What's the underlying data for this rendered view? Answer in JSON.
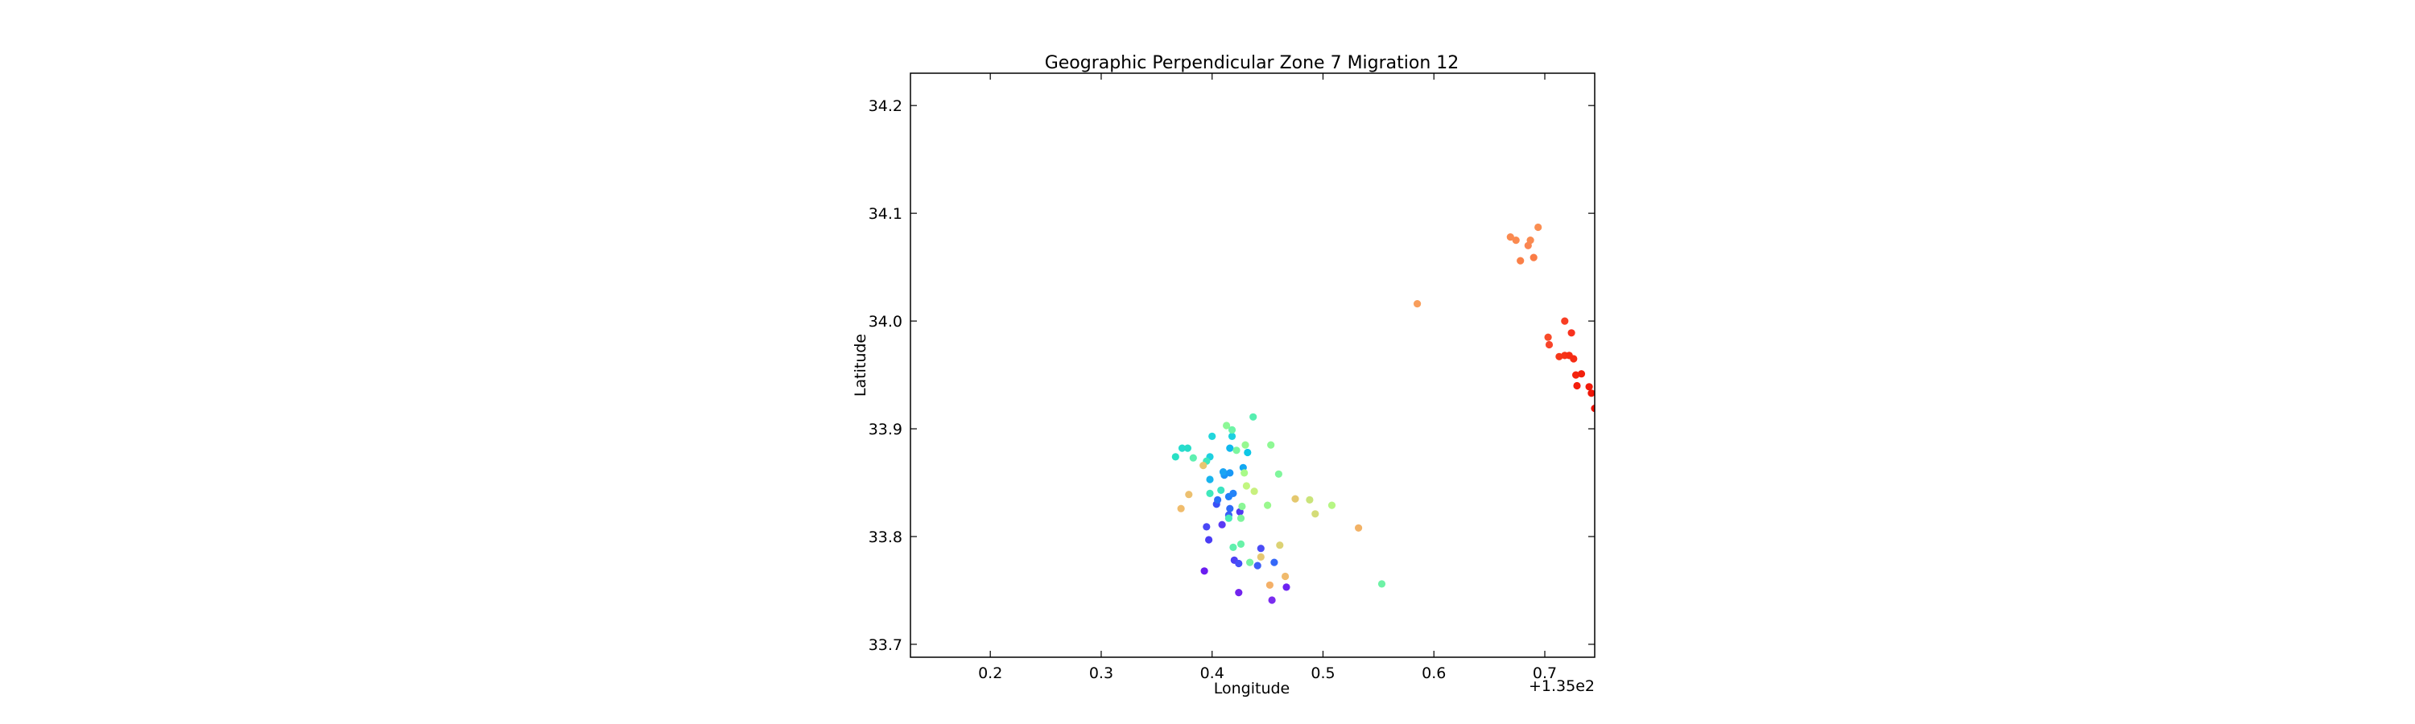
{
  "chart_data": {
    "type": "scatter",
    "title": "Geographic Perpendicular Zone 7 Migration 12",
    "xlabel": "Longitude",
    "ylabel": "Latitude",
    "x_offset_label": "+1.35e2",
    "xlim": [
      135.128,
      135.745
    ],
    "ylim": [
      33.688,
      34.23
    ],
    "x_ticks": [
      {
        "value": 135.2,
        "label": "0.2"
      },
      {
        "value": 135.3,
        "label": "0.3"
      },
      {
        "value": 135.4,
        "label": "0.4"
      },
      {
        "value": 135.5,
        "label": "0.5"
      },
      {
        "value": 135.6,
        "label": "0.6"
      },
      {
        "value": 135.7,
        "label": "0.7"
      }
    ],
    "y_ticks": [
      {
        "value": 33.7,
        "label": "33.7"
      },
      {
        "value": 33.8,
        "label": "33.8"
      },
      {
        "value": 33.9,
        "label": "33.9"
      },
      {
        "value": 34.0,
        "label": "34.0"
      },
      {
        "value": 34.1,
        "label": "34.1"
      },
      {
        "value": 34.2,
        "label": "34.2"
      }
    ],
    "grid": false,
    "legend": false,
    "points": [
      {
        "x": 135.393,
        "y": 33.768,
        "color": "#6a1cf0"
      },
      {
        "x": 135.424,
        "y": 33.748,
        "color": "#7224ee"
      },
      {
        "x": 135.454,
        "y": 33.741,
        "color": "#7a2cef"
      },
      {
        "x": 135.467,
        "y": 33.753,
        "color": "#6c22f2"
      },
      {
        "x": 135.397,
        "y": 33.797,
        "color": "#4a3cf5"
      },
      {
        "x": 135.395,
        "y": 33.809,
        "color": "#4a48f6"
      },
      {
        "x": 135.409,
        "y": 33.811,
        "color": "#5a3af4"
      },
      {
        "x": 135.42,
        "y": 33.778,
        "color": "#4e40f5"
      },
      {
        "x": 135.424,
        "y": 33.775,
        "color": "#4650f7"
      },
      {
        "x": 135.441,
        "y": 33.773,
        "color": "#3e60f7"
      },
      {
        "x": 135.444,
        "y": 33.789,
        "color": "#4a4cf6"
      },
      {
        "x": 135.456,
        "y": 33.776,
        "color": "#3468f8"
      },
      {
        "x": 135.404,
        "y": 33.83,
        "color": "#3a50f6"
      },
      {
        "x": 135.416,
        "y": 33.826,
        "color": "#2e6af8"
      },
      {
        "x": 135.425,
        "y": 33.823,
        "color": "#5038f3"
      },
      {
        "x": 135.415,
        "y": 33.82,
        "color": "#3a5ef7"
      },
      {
        "x": 135.405,
        "y": 33.834,
        "color": "#2a70f8"
      },
      {
        "x": 135.415,
        "y": 33.837,
        "color": "#2080f8"
      },
      {
        "x": 135.419,
        "y": 33.84,
        "color": "#2484f8"
      },
      {
        "x": 135.411,
        "y": 33.857,
        "color": "#1c94f6"
      },
      {
        "x": 135.41,
        "y": 33.86,
        "color": "#1aa4f4"
      },
      {
        "x": 135.416,
        "y": 33.859,
        "color": "#1898f6"
      },
      {
        "x": 135.428,
        "y": 33.864,
        "color": "#12a8f2"
      },
      {
        "x": 135.398,
        "y": 33.853,
        "color": "#18b4ee"
      },
      {
        "x": 135.416,
        "y": 33.882,
        "color": "#10b8ee"
      },
      {
        "x": 135.432,
        "y": 33.878,
        "color": "#0ec8e6"
      },
      {
        "x": 135.398,
        "y": 33.874,
        "color": "#1ed0e0"
      },
      {
        "x": 135.4,
        "y": 33.893,
        "color": "#22d6dc"
      },
      {
        "x": 135.418,
        "y": 33.893,
        "color": "#1cd0e0"
      },
      {
        "x": 135.373,
        "y": 33.882,
        "color": "#26dccf"
      },
      {
        "x": 135.378,
        "y": 33.882,
        "color": "#28dcc8"
      },
      {
        "x": 135.367,
        "y": 33.874,
        "color": "#28e0c4"
      },
      {
        "x": 135.383,
        "y": 33.873,
        "color": "#5ef0b0"
      },
      {
        "x": 135.395,
        "y": 33.87,
        "color": "#3ee8bc"
      },
      {
        "x": 135.398,
        "y": 33.84,
        "color": "#40e8bc"
      },
      {
        "x": 135.408,
        "y": 33.843,
        "color": "#3ce4c0"
      },
      {
        "x": 135.415,
        "y": 33.817,
        "color": "#48eab8"
      },
      {
        "x": 135.437,
        "y": 33.911,
        "color": "#56eeb0"
      },
      {
        "x": 135.418,
        "y": 33.899,
        "color": "#6ef4a6"
      },
      {
        "x": 135.413,
        "y": 33.903,
        "color": "#8cf896"
      },
      {
        "x": 135.422,
        "y": 33.88,
        "color": "#7cf69e"
      },
      {
        "x": 135.43,
        "y": 33.885,
        "color": "#96f890"
      },
      {
        "x": 135.453,
        "y": 33.885,
        "color": "#8ef894"
      },
      {
        "x": 135.46,
        "y": 33.858,
        "color": "#80f69c"
      },
      {
        "x": 135.429,
        "y": 33.859,
        "color": "#a8fa88"
      },
      {
        "x": 135.431,
        "y": 33.847,
        "color": "#c2f680"
      },
      {
        "x": 135.438,
        "y": 33.842,
        "color": "#c8f07e"
      },
      {
        "x": 135.45,
        "y": 33.829,
        "color": "#9af88e"
      },
      {
        "x": 135.427,
        "y": 33.828,
        "color": "#8af696"
      },
      {
        "x": 135.419,
        "y": 33.79,
        "color": "#60f0ae"
      },
      {
        "x": 135.426,
        "y": 33.793,
        "color": "#68f2a8"
      },
      {
        "x": 135.434,
        "y": 33.776,
        "color": "#78f4a0"
      },
      {
        "x": 135.553,
        "y": 33.756,
        "color": "#6ef2a6"
      },
      {
        "x": 135.426,
        "y": 33.817,
        "color": "#7ef49c"
      },
      {
        "x": 135.508,
        "y": 33.829,
        "color": "#b6f684"
      },
      {
        "x": 135.488,
        "y": 33.834,
        "color": "#cae47a"
      },
      {
        "x": 135.493,
        "y": 33.821,
        "color": "#d4dc78"
      },
      {
        "x": 135.475,
        "y": 33.835,
        "color": "#e4c86e"
      },
      {
        "x": 135.532,
        "y": 33.808,
        "color": "#f2b266"
      },
      {
        "x": 135.379,
        "y": 33.839,
        "color": "#ecc070"
      },
      {
        "x": 135.372,
        "y": 33.826,
        "color": "#f0bc6c"
      },
      {
        "x": 135.392,
        "y": 33.866,
        "color": "#e8c670"
      },
      {
        "x": 135.461,
        "y": 33.792,
        "color": "#dcd274"
      },
      {
        "x": 135.444,
        "y": 33.781,
        "color": "#e6c872"
      },
      {
        "x": 135.466,
        "y": 33.763,
        "color": "#f0ba6c"
      },
      {
        "x": 135.452,
        "y": 33.755,
        "color": "#f4b068"
      },
      {
        "x": 135.585,
        "y": 34.016,
        "color": "#f89e5c"
      },
      {
        "x": 135.669,
        "y": 34.078,
        "color": "#fa8a50"
      },
      {
        "x": 135.674,
        "y": 34.075,
        "color": "#fa8a50"
      },
      {
        "x": 135.685,
        "y": 34.07,
        "color": "#fa8652"
      },
      {
        "x": 135.687,
        "y": 34.075,
        "color": "#fa8a50"
      },
      {
        "x": 135.694,
        "y": 34.087,
        "color": "#fa8e52"
      },
      {
        "x": 135.678,
        "y": 34.056,
        "color": "#fa8048"
      },
      {
        "x": 135.69,
        "y": 34.059,
        "color": "#fa7c46"
      },
      {
        "x": 135.718,
        "y": 34.0,
        "color": "#f83e24"
      },
      {
        "x": 135.724,
        "y": 33.989,
        "color": "#f8321e"
      },
      {
        "x": 135.703,
        "y": 33.985,
        "color": "#f84c2a"
      },
      {
        "x": 135.704,
        "y": 33.978,
        "color": "#f8442a"
      },
      {
        "x": 135.713,
        "y": 33.967,
        "color": "#f63618"
      },
      {
        "x": 135.718,
        "y": 33.968,
        "color": "#f63418"
      },
      {
        "x": 135.722,
        "y": 33.968,
        "color": "#f62e14"
      },
      {
        "x": 135.726,
        "y": 33.965,
        "color": "#f62c14"
      },
      {
        "x": 135.728,
        "y": 33.95,
        "color": "#f4240e"
      },
      {
        "x": 135.733,
        "y": 33.951,
        "color": "#f2200c"
      },
      {
        "x": 135.729,
        "y": 33.94,
        "color": "#f41e0c"
      },
      {
        "x": 135.74,
        "y": 33.939,
        "color": "#f21a0a"
      },
      {
        "x": 135.742,
        "y": 33.933,
        "color": "#f01608"
      },
      {
        "x": 135.745,
        "y": 33.919,
        "color": "#ee1206"
      }
    ]
  }
}
